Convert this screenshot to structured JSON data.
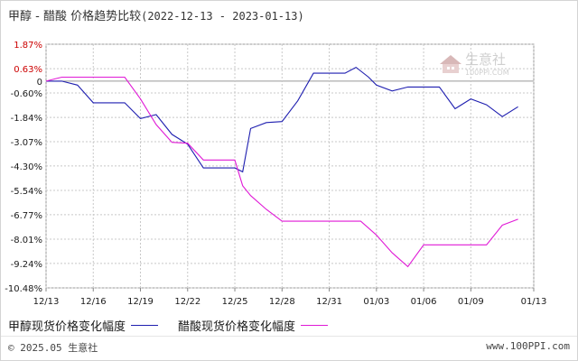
{
  "header": {
    "title": "甲醇 - 醋酸 价格趋势比较",
    "range": "(2022-12-13 - 2023-01-13)"
  },
  "watermark": {
    "name": "生意社",
    "url": "100PPI.COM"
  },
  "footer": {
    "copyright": "© 2025.05 生意社",
    "site": "www.100PPI.com"
  },
  "colors": {
    "series_a": "#1f1fb0",
    "series_b": "#e01ad6",
    "grid": "#c8c8c8",
    "axis": "#888888"
  },
  "chart_data": {
    "type": "line",
    "title": "甲醇 - 醋酸 价格趋势比较",
    "xlabel": "",
    "ylabel": "",
    "ylim": [
      -10.48,
      1.87
    ],
    "y_ticks": [
      1.87,
      0.63,
      0,
      -0.6,
      -1.84,
      -3.07,
      -4.3,
      -5.54,
      -6.77,
      -8.01,
      -9.24,
      -10.48
    ],
    "y_tick_labels": [
      "1.87%",
      "0.63%",
      "0",
      "-0.60%",
      "-1.84%",
      "-3.07%",
      "-4.30%",
      "-5.54%",
      "-6.77%",
      "-8.01%",
      "-9.24%",
      "-10.48%"
    ],
    "x_ticks": [
      "12/13",
      "12/16",
      "12/19",
      "12/22",
      "12/25",
      "12/28",
      "12/31",
      "01/03",
      "01/06",
      "01/09",
      "01/13"
    ],
    "x_tick_days": [
      0,
      3,
      6,
      9,
      12,
      15,
      18,
      21,
      24,
      27,
      31
    ],
    "grid": true,
    "legend_position": "bottom-left",
    "series": [
      {
        "name": "甲醇现货价格变化幅度",
        "points": [
          [
            0,
            0
          ],
          [
            1,
            0
          ],
          [
            2,
            -0.2
          ],
          [
            3,
            -1.1
          ],
          [
            4,
            -1.1
          ],
          [
            5,
            -1.1
          ],
          [
            6,
            -1.9
          ],
          [
            7,
            -1.7
          ],
          [
            8,
            -2.7
          ],
          [
            9,
            -3.2
          ],
          [
            10,
            -4.4
          ],
          [
            11,
            -4.4
          ],
          [
            12,
            -4.4
          ],
          [
            12.5,
            -4.6
          ],
          [
            13,
            -2.4
          ],
          [
            14,
            -2.1
          ],
          [
            15,
            -2.05
          ],
          [
            16,
            -1.0
          ],
          [
            17,
            0.4
          ],
          [
            18,
            0.4
          ],
          [
            19,
            0.4
          ],
          [
            19.7,
            0.7
          ],
          [
            20.5,
            0.2
          ],
          [
            21,
            -0.2
          ],
          [
            22,
            -0.5
          ],
          [
            23,
            -0.3
          ],
          [
            24,
            -0.3
          ],
          [
            25,
            -0.3
          ],
          [
            26,
            -1.4
          ],
          [
            27,
            -0.9
          ],
          [
            28,
            -1.2
          ],
          [
            29,
            -1.8
          ],
          [
            30,
            -1.3
          ]
        ]
      },
      {
        "name": "醋酸现货价格变化幅度",
        "points": [
          [
            0,
            0
          ],
          [
            1,
            0.2
          ],
          [
            2,
            0.2
          ],
          [
            3,
            0.2
          ],
          [
            4,
            0.2
          ],
          [
            5,
            0.2
          ],
          [
            6,
            -0.9
          ],
          [
            7,
            -2.2
          ],
          [
            8,
            -3.1
          ],
          [
            9,
            -3.15
          ],
          [
            10,
            -4.0
          ],
          [
            11,
            -4.0
          ],
          [
            12,
            -4.0
          ],
          [
            12.5,
            -5.3
          ],
          [
            13,
            -5.8
          ],
          [
            14,
            -6.5
          ],
          [
            15,
            -7.1
          ],
          [
            16,
            -7.1
          ],
          [
            17,
            -7.1
          ],
          [
            18,
            -7.1
          ],
          [
            19,
            -7.1
          ],
          [
            20,
            -7.1
          ],
          [
            21,
            -7.8
          ],
          [
            22,
            -8.7
          ],
          [
            23,
            -9.4
          ],
          [
            24,
            -8.3
          ],
          [
            25,
            -8.3
          ],
          [
            26,
            -8.3
          ],
          [
            27,
            -8.3
          ],
          [
            28,
            -8.3
          ],
          [
            29,
            -7.3
          ],
          [
            30,
            -7.0
          ]
        ]
      }
    ]
  }
}
